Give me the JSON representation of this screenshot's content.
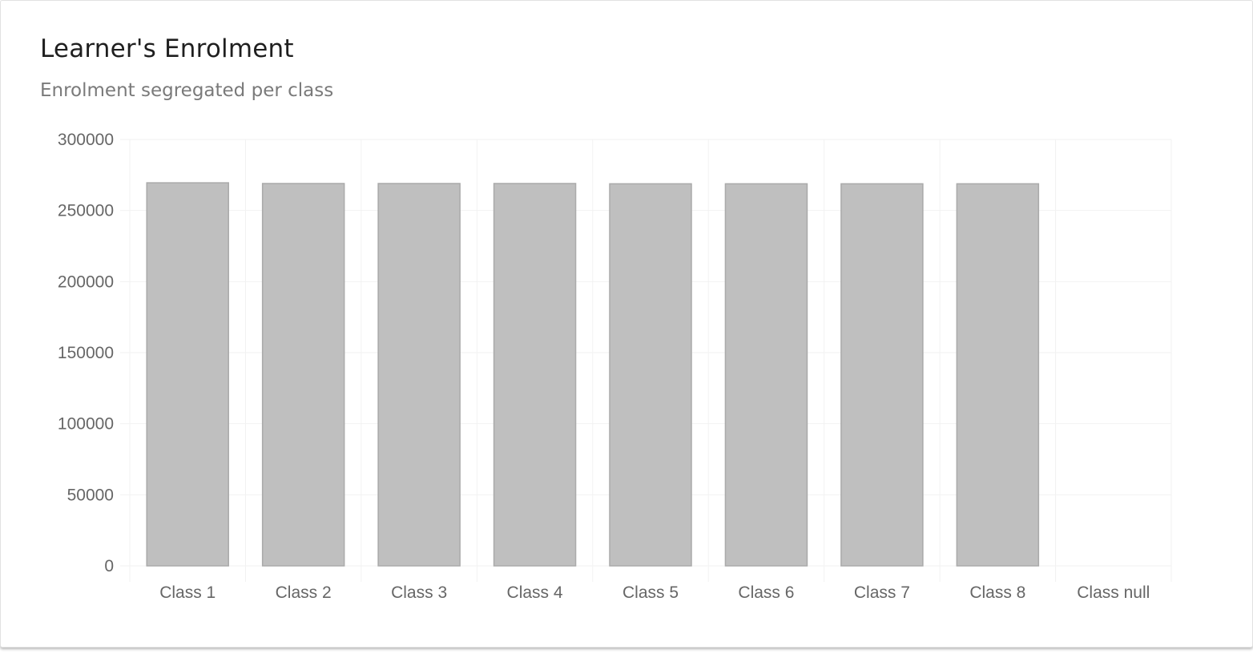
{
  "card": {
    "title": "Learner's Enrolment",
    "subtitle": "Enrolment segregated per class"
  },
  "colors": {
    "bar_fill": "#bfbfbf",
    "bar_stroke": "#aaaaaa",
    "grid": "#f2f2f2",
    "tick_text": "#666666"
  },
  "chart_data": {
    "type": "bar",
    "title": "Learner's Enrolment",
    "subtitle": "Enrolment segregated per class",
    "xlabel": "",
    "ylabel": "",
    "categories": [
      "Class 1",
      "Class 2",
      "Class 3",
      "Class 4",
      "Class 5",
      "Class 6",
      "Class 7",
      "Class 8",
      "Class null"
    ],
    "values": [
      269500,
      269000,
      269000,
      269000,
      268800,
      268800,
      268800,
      268800,
      0
    ],
    "ylim": [
      0,
      300000
    ],
    "yticks": [
      0,
      50000,
      100000,
      150000,
      200000,
      250000,
      300000
    ],
    "grid": true,
    "legend": "none"
  }
}
